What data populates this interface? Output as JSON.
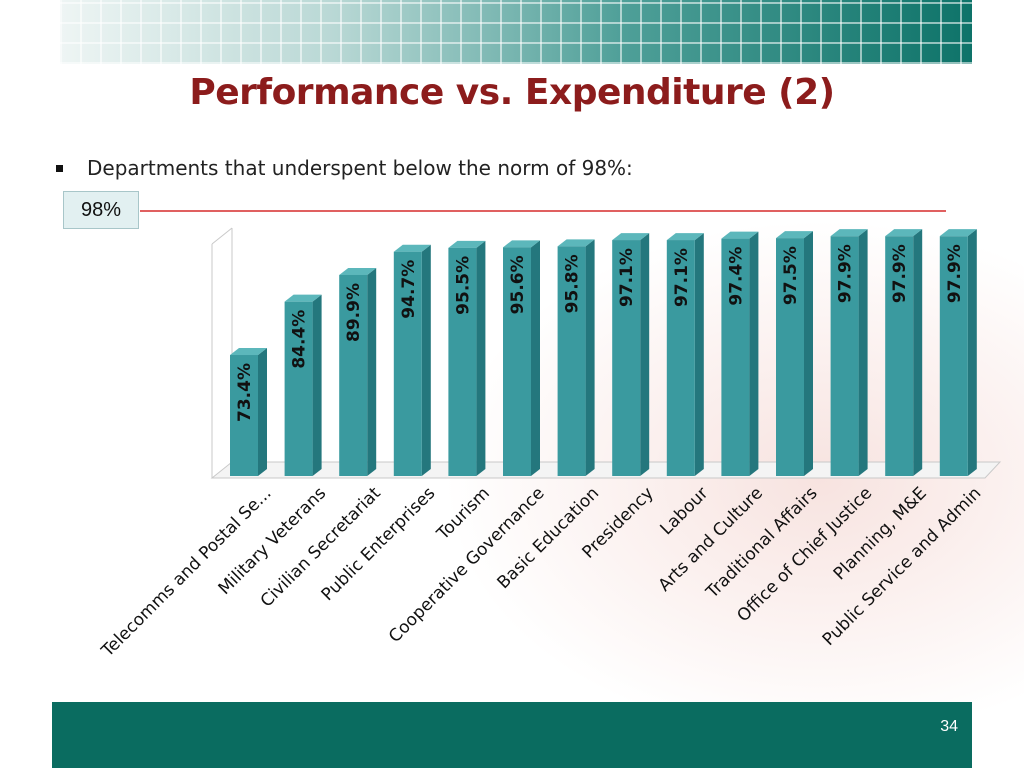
{
  "slide": {
    "title": "Performance vs. Expenditure (2)",
    "bullet": "Departments that underspent below the norm of 98%:",
    "norm_label": "98%",
    "page_number": "34"
  },
  "colors": {
    "title": "#8c1c1c",
    "bar_front": "#3a9a9f",
    "bar_side": "#24777d",
    "bar_top": "#5cb7bb",
    "norm_line": "#d62b2b",
    "footer": "#0a6c60"
  },
  "chart_data": {
    "type": "bar",
    "style": "3d-column",
    "categories": [
      "Telecomms and Postal Se...",
      "Military Veterans",
      "Civilian Secretariat",
      "Public Enterprises",
      "Tourism",
      "Cooperative Governance",
      "Basic Education",
      "Presidency",
      "Labour",
      "Arts and Culture",
      "Traditional Affairs",
      "Office of Chief Justice",
      "Planning, M&E",
      "Public Service and Admin"
    ],
    "values": [
      73.4,
      84.4,
      89.9,
      94.7,
      95.5,
      95.6,
      95.8,
      97.1,
      97.1,
      97.4,
      97.5,
      97.9,
      97.9,
      97.9
    ],
    "data_labels": [
      "73.4%",
      "84.4%",
      "89.9%",
      "94.7%",
      "95.5%",
      "95.6%",
      "95.8%",
      "97.1%",
      "97.1%",
      "97.4%",
      "97.5%",
      "97.9%",
      "97.9%",
      "97.9%"
    ],
    "reference_line": {
      "value": 98,
      "label": "98%"
    },
    "ylim": [
      0,
      100
    ],
    "grid": false,
    "legend": "none"
  }
}
